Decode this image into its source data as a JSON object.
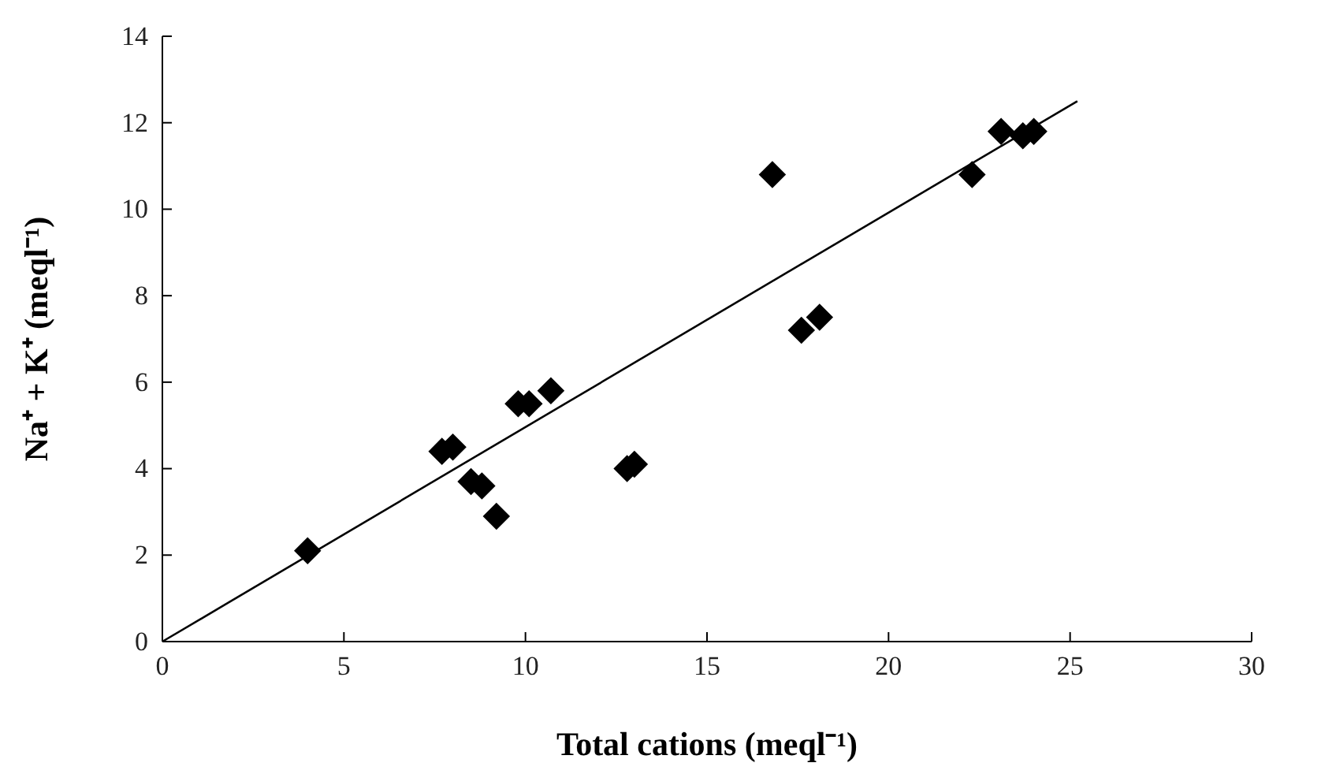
{
  "chart_data": {
    "type": "scatter",
    "xlabel": "Total cations (meql⁻¹)",
    "ylabel": "Na⁺ + K⁺ (meql⁻¹)",
    "xlim": [
      0,
      30
    ],
    "xticks": [
      0,
      5,
      10,
      15,
      20,
      25,
      30
    ],
    "ylim": [
      0,
      14
    ],
    "yticks": [
      0,
      2,
      4,
      6,
      8,
      10,
      12,
      14
    ],
    "grid": false,
    "marker": "diamond",
    "series": [
      {
        "color": "#000000",
        "x": [
          4.0,
          7.7,
          8.0,
          8.5,
          8.8,
          9.2,
          9.8,
          10.1,
          10.7,
          12.8,
          13.0,
          16.8,
          17.6,
          18.1,
          22.3,
          23.1,
          23.7,
          24.0
        ],
        "values": [
          2.1,
          4.4,
          4.5,
          3.7,
          3.6,
          2.9,
          5.5,
          5.5,
          5.8,
          4.0,
          4.1,
          10.8,
          7.2,
          7.5,
          10.8,
          11.8,
          11.7,
          11.8
        ]
      },
      {
        "type": "line",
        "color": "#000000",
        "marker": "none",
        "x": [
          0,
          25.2
        ],
        "values": [
          0,
          12.5
        ]
      }
    ]
  }
}
